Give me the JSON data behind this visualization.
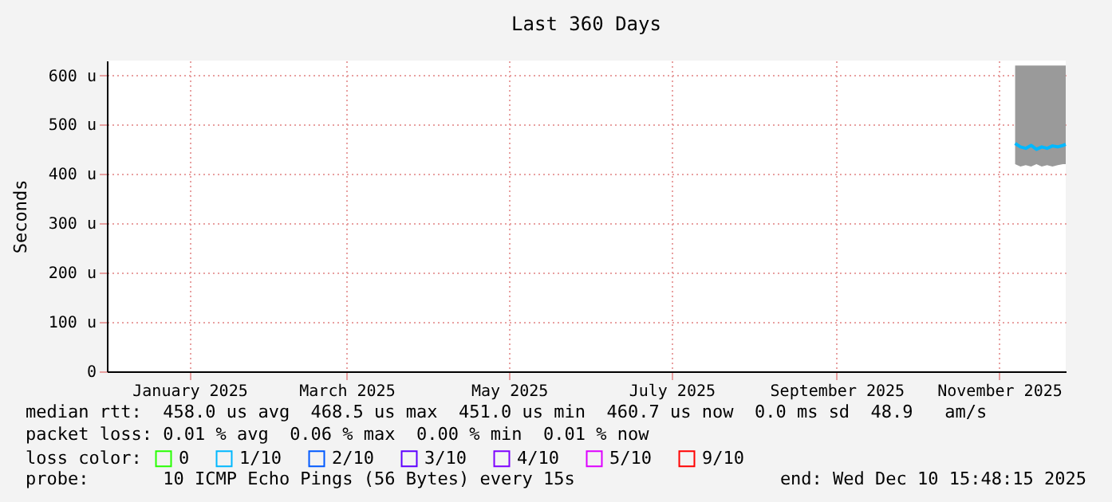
{
  "chart_data": {
    "type": "line",
    "title": "Last 360 Days",
    "ylabel": "Seconds",
    "x": [
      "2025-11-21",
      "2025-11-23",
      "2025-11-25",
      "2025-11-27",
      "2025-11-29",
      "2025-12-01",
      "2025-12-03",
      "2025-12-05",
      "2025-12-07",
      "2025-12-09",
      "2025-12-10"
    ],
    "series": [
      {
        "name": "0",
        "color": "#26ff00",
        "values": [
          null,
          null,
          null,
          null,
          null,
          null,
          null,
          null,
          null,
          null,
          null
        ]
      },
      {
        "name": "1/10",
        "color": "#00b8ff",
        "values": [
          462,
          455,
          452,
          458,
          450,
          455,
          452,
          457,
          455,
          458,
          460
        ],
        "lower": [
          420,
          415,
          418,
          415,
          420,
          415,
          418,
          415,
          418,
          420,
          420
        ],
        "upper": [
          620,
          620,
          620,
          620,
          620,
          620,
          620,
          620,
          620,
          620,
          620
        ]
      },
      {
        "name": "2/10",
        "color": "#0059ff",
        "values": [
          null,
          null,
          null,
          null,
          null,
          null,
          null,
          null,
          null,
          null,
          null
        ]
      },
      {
        "name": "3/10",
        "color": "#5e00ff",
        "values": [
          null,
          null,
          null,
          null,
          null,
          null,
          null,
          null,
          null,
          null,
          null
        ]
      },
      {
        "name": "4/10",
        "color": "#7e00ff",
        "values": [
          null,
          null,
          null,
          null,
          null,
          null,
          null,
          null,
          null,
          null,
          null
        ]
      },
      {
        "name": "5/10",
        "color": "#dd00ff",
        "values": [
          null,
          null,
          null,
          null,
          null,
          null,
          null,
          null,
          null,
          null,
          null
        ]
      },
      {
        "name": "9/10",
        "color": "#ff0000",
        "values": [
          null,
          null,
          null,
          null,
          null,
          null,
          null,
          null,
          null,
          null,
          null
        ]
      }
    ],
    "legend_title": "loss color:",
    "legend": "bottom",
    "xlim": [
      "2024-12-15",
      "2025-12-10"
    ],
    "xticks": [
      {
        "value": "2025-01-15",
        "label": "January 2025"
      },
      {
        "value": "2025-03-15",
        "label": "March 2025"
      },
      {
        "value": "2025-05-15",
        "label": "May 2025"
      },
      {
        "value": "2025-07-15",
        "label": "July 2025"
      },
      {
        "value": "2025-09-15",
        "label": "September 2025"
      },
      {
        "value": "2025-11-15",
        "label": "November 2025"
      }
    ],
    "ylim": [
      0,
      630
    ],
    "yticks": [
      0,
      {
        "value": 100,
        "label": "100 u"
      },
      {
        "value": 200,
        "label": "200 u"
      },
      {
        "value": 300,
        "label": "300 u"
      },
      {
        "value": 400,
        "label": "400 u"
      },
      {
        "value": 500,
        "label": "500 u"
      },
      {
        "value": 600,
        "label": "600 u"
      }
    ],
    "grid": true,
    "annotations": [
      "median rtt:  458.0 us avg  468.5 us max  451.0 us min  460.7 us now  0.0 ms sd  48.9   am/s",
      "packet loss: 0.01 % avg  0.06 % max  0.00 % min  0.01 % now",
      "probe:       10 ICMP Echo Pings (56 Bytes) every 15s",
      "end: Wed Dec 10 15:48:15 2025"
    ]
  }
}
